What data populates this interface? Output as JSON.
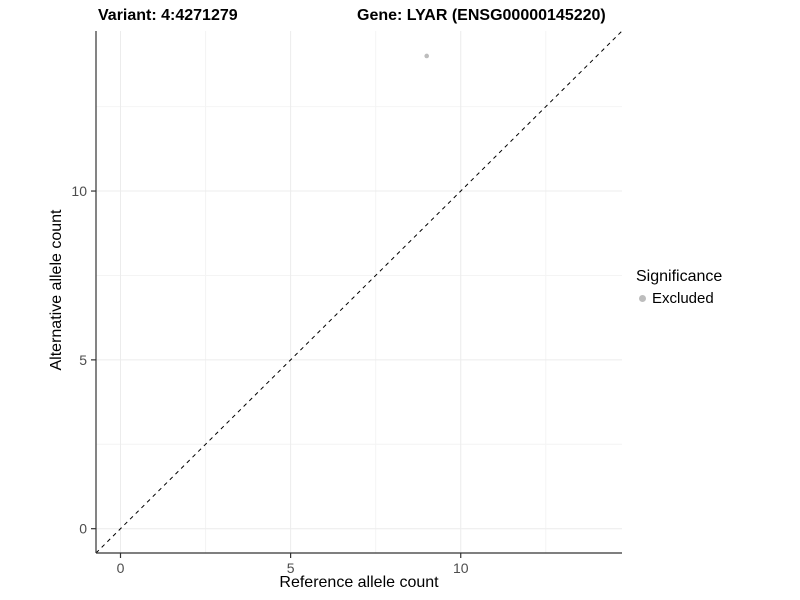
{
  "chart_data": {
    "type": "scatter",
    "title_left": "Variant: 4:4271279",
    "title_right": "Gene: LYAR (ENSG00000145220)",
    "xlabel": "Reference allele count",
    "ylabel": "Alternative allele count",
    "xlim": [
      -0.72,
      14.74
    ],
    "ylim": [
      -0.72,
      14.74
    ],
    "x_ticks": [
      0,
      5,
      10
    ],
    "y_ticks": [
      0,
      5,
      10
    ],
    "x_minor_ticks": [
      2.5,
      7.5,
      12.5
    ],
    "y_minor_ticks": [
      2.5,
      7.5,
      12.5
    ],
    "grid": true,
    "series": [
      {
        "name": "Excluded",
        "color": "#bdbdbd",
        "points": [
          {
            "x": 9,
            "y": 14
          }
        ]
      }
    ],
    "reference_line": {
      "type": "identity",
      "style": "dashed",
      "color": "#000000"
    },
    "legend": {
      "title": "Significance",
      "position": "right",
      "entries": [
        {
          "label": "Excluded",
          "color": "#bdbdbd"
        }
      ]
    },
    "style": {
      "axis_line": "#333333",
      "tick_label": "#4d4d4d",
      "grid_major": "#ececec",
      "grid_minor": "#f4f4f4",
      "background": "#ffffff"
    }
  }
}
